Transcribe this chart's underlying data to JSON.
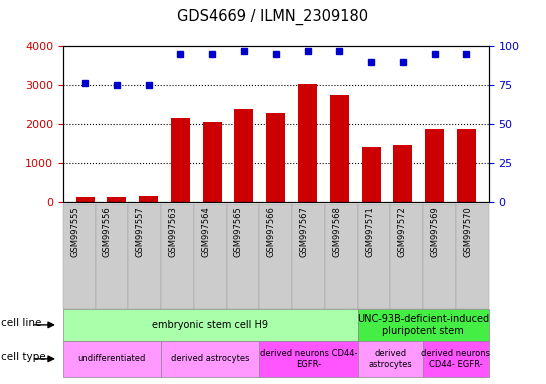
{
  "title": "GDS4669 / ILMN_2309180",
  "samples": [
    "GSM997555",
    "GSM997556",
    "GSM997557",
    "GSM997563",
    "GSM997564",
    "GSM997565",
    "GSM997566",
    "GSM997567",
    "GSM997568",
    "GSM997571",
    "GSM997572",
    "GSM997569",
    "GSM997570"
  ],
  "counts": [
    130,
    120,
    140,
    2160,
    2060,
    2380,
    2280,
    3020,
    2740,
    1410,
    1450,
    1860,
    1860
  ],
  "percentile": [
    76,
    75,
    75,
    95,
    95,
    97,
    95,
    97,
    97,
    90,
    90,
    95,
    95
  ],
  "bar_color": "#cc0000",
  "dot_color": "#0000cc",
  "ylim_left": [
    0,
    4000
  ],
  "ylim_right": [
    0,
    100
  ],
  "yticks_left": [
    0,
    1000,
    2000,
    3000,
    4000
  ],
  "yticks_right": [
    0,
    25,
    50,
    75,
    100
  ],
  "cell_line_groups": [
    {
      "label": "embryonic stem cell H9",
      "start": 0,
      "end": 8,
      "color": "#aaffaa"
    },
    {
      "label": "UNC-93B-deficient-induced\npluripotent stem",
      "start": 9,
      "end": 12,
      "color": "#44ee44"
    }
  ],
  "cell_type_groups": [
    {
      "label": "undifferentiated",
      "start": 0,
      "end": 2,
      "color": "#ff99ff"
    },
    {
      "label": "derived astrocytes",
      "start": 3,
      "end": 5,
      "color": "#ff99ff"
    },
    {
      "label": "derived neurons CD44-\nEGFR-",
      "start": 6,
      "end": 8,
      "color": "#ff55ff"
    },
    {
      "label": "derived\nastrocytes",
      "start": 9,
      "end": 10,
      "color": "#ff99ff"
    },
    {
      "label": "derived neurons\nCD44- EGFR-",
      "start": 11,
      "end": 12,
      "color": "#ff55ff"
    }
  ],
  "legend_count_color": "#cc0000",
  "legend_pct_color": "#0000cc",
  "bg_color": "#ffffff",
  "grid_color": "#000000",
  "tick_label_color_left": "#cc0000",
  "tick_label_color_right": "#0000cc",
  "xtick_bg_color": "#cccccc"
}
